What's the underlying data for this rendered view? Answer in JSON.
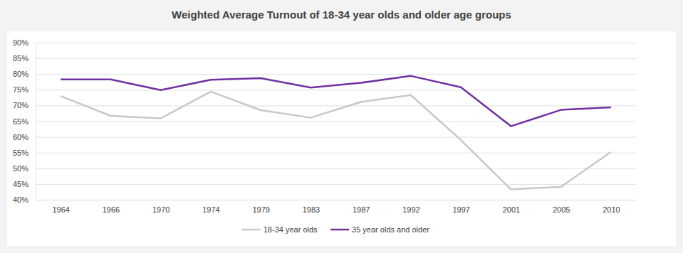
{
  "chart_data": {
    "type": "line",
    "title": "Weighted Average Turnout of 18-34 year olds and older age groups",
    "categories": [
      "1964",
      "1966",
      "1970",
      "1974",
      "1979",
      "1983",
      "1987",
      "1992",
      "1997",
      "2001",
      "2005",
      "2010"
    ],
    "series": [
      {
        "name": "18-34 year olds",
        "color": "#c8c8c8",
        "values": [
          73.0,
          66.7,
          65.9,
          74.4,
          68.5,
          66.1,
          71.1,
          73.3,
          59.0,
          43.3,
          44.1,
          55.2
        ]
      },
      {
        "name": "35 year olds and older",
        "color": "#7030a0",
        "values": [
          78.3,
          78.3,
          74.9,
          78.2,
          78.7,
          75.7,
          77.2,
          79.4,
          75.8,
          63.4,
          68.6,
          69.4
        ]
      }
    ],
    "ylim": [
      40,
      90
    ],
    "yticks": [
      {
        "value": 40,
        "label": "40%"
      },
      {
        "value": 45,
        "label": "45%"
      },
      {
        "value": 50,
        "label": "50%"
      },
      {
        "value": 55,
        "label": "55%"
      },
      {
        "value": 60,
        "label": "60%"
      },
      {
        "value": 65,
        "label": "65%"
      },
      {
        "value": 70,
        "label": "70%"
      },
      {
        "value": 75,
        "label": "75%"
      },
      {
        "value": 80,
        "label": "80%"
      },
      {
        "value": 85,
        "label": "85%"
      },
      {
        "value": 90,
        "label": "90%"
      }
    ],
    "grid": true,
    "legend": "bottom"
  }
}
